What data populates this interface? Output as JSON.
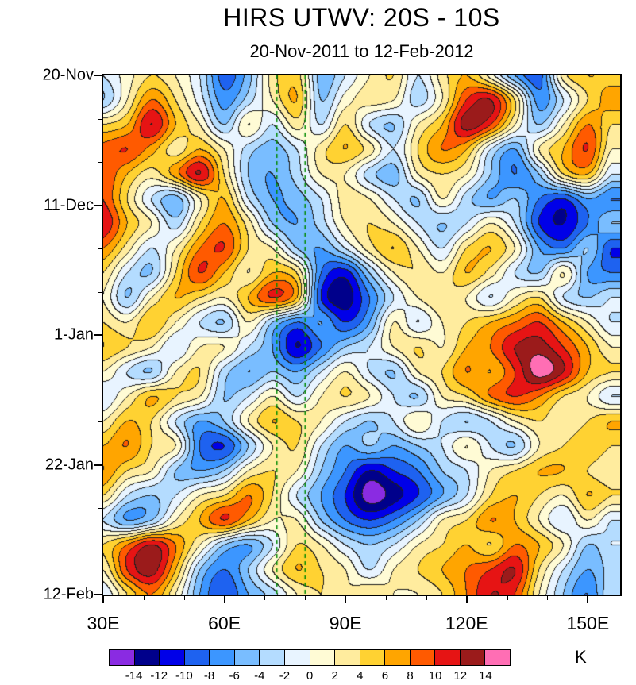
{
  "chart_data": {
    "type": "heatmap",
    "title": "HIRS UTWV: 20S - 10S",
    "subtitle": "20-Nov-2011 to 12-Feb-2012",
    "x_axis": {
      "range_lon_deg_east": [
        30,
        158
      ],
      "ticks": [
        {
          "lon": 30,
          "label": "30E"
        },
        {
          "lon": 60,
          "label": "60E"
        },
        {
          "lon": 90,
          "label": "90E"
        },
        {
          "lon": 120,
          "label": "120E"
        },
        {
          "lon": 150,
          "label": "150E"
        }
      ],
      "minor_tick_lons": [
        40,
        50,
        70,
        80,
        100,
        110,
        130,
        140
      ]
    },
    "y_axis": {
      "range_days": [
        0,
        84
      ],
      "ticks": [
        {
          "day": 0,
          "label": "20-Nov"
        },
        {
          "day": 21,
          "label": "11-Dec"
        },
        {
          "day": 42,
          "label": "1-Jan"
        },
        {
          "day": 63,
          "label": "22-Jan"
        },
        {
          "day": 84,
          "label": "12-Feb"
        }
      ],
      "minor_tick_days": [
        7,
        14,
        28,
        35,
        49,
        56,
        70,
        77
      ]
    },
    "grid_lons": [
      30,
      36,
      42,
      48,
      54,
      60,
      66,
      72,
      78,
      84,
      90,
      96,
      102,
      108,
      114,
      120,
      126,
      132,
      138,
      144,
      150,
      156
    ],
    "grid_days": [
      0,
      4,
      8,
      12,
      16,
      20,
      24,
      28,
      32,
      36,
      40,
      44,
      48,
      52,
      56,
      60,
      64,
      68,
      72,
      76,
      80,
      84
    ],
    "values_K": [
      [
        -2,
        1,
        4,
        2,
        -2,
        -9,
        -5,
        3,
        5,
        -5,
        -2,
        2,
        4,
        -2,
        3,
        6,
        1,
        -6,
        -9,
        3,
        6,
        5
      ],
      [
        -4,
        2,
        8,
        4,
        -1,
        -7,
        -3,
        2,
        6,
        -4,
        1,
        3,
        2,
        -3,
        2,
        10,
        12,
        4,
        -7,
        -2,
        4,
        7
      ],
      [
        4,
        6,
        12,
        6,
        2,
        -4,
        2,
        -2,
        3,
        -2,
        4,
        -2,
        -4,
        2,
        6,
        13,
        10,
        2,
        -4,
        2,
        8,
        4
      ],
      [
        9,
        10,
        7,
        3,
        6,
        2,
        -3,
        -5,
        -2,
        3,
        6,
        3,
        -2,
        4,
        8,
        6,
        -2,
        -6,
        2,
        6,
        10,
        2
      ],
      [
        10,
        6,
        3,
        7,
        12,
        4,
        -4,
        -6,
        -3,
        2,
        2,
        -3,
        -5,
        2,
        4,
        2,
        -4,
        -8,
        -4,
        4,
        6,
        -2
      ],
      [
        10,
        4,
        -2,
        -5,
        2,
        6,
        -2,
        -6,
        -5,
        -2,
        3,
        2,
        -2,
        -4,
        2,
        -3,
        -6,
        -4,
        -8,
        -10,
        -6,
        -8
      ],
      [
        12,
        6,
        2,
        -3,
        4,
        8,
        3,
        -4,
        -6,
        -3,
        2,
        4,
        2,
        -2,
        -4,
        -2,
        2,
        -2,
        -10,
        -12,
        -8,
        -4
      ],
      [
        8,
        3,
        -2,
        2,
        8,
        10,
        4,
        2,
        -4,
        -6,
        -2,
        3,
        6,
        2,
        -2,
        4,
        6,
        2,
        -6,
        -8,
        -4,
        -10
      ],
      [
        4,
        -2,
        -4,
        4,
        10,
        6,
        2,
        6,
        4,
        -8,
        -11,
        -4,
        2,
        4,
        2,
        6,
        3,
        -2,
        -4,
        2,
        -6,
        -8
      ],
      [
        2,
        -4,
        2,
        6,
        4,
        2,
        6,
        10,
        6,
        -10,
        -13,
        -8,
        -2,
        2,
        4,
        2,
        -2,
        2,
        4,
        -2,
        -4,
        -2
      ],
      [
        4,
        2,
        6,
        2,
        -2,
        -4,
        2,
        -4,
        -8,
        -6,
        -10,
        -6,
        2,
        -2,
        2,
        4,
        6,
        8,
        10,
        6,
        2,
        -2
      ],
      [
        6,
        4,
        2,
        -2,
        2,
        2,
        -2,
        -6,
        -12,
        -8,
        -4,
        -2,
        2,
        4,
        2,
        6,
        8,
        12,
        13,
        10,
        6,
        2
      ],
      [
        2,
        -2,
        -4,
        2,
        4,
        -3,
        -6,
        -4,
        -6,
        -2,
        2,
        -2,
        -4,
        2,
        4,
        8,
        6,
        10,
        15,
        12,
        6,
        4
      ],
      [
        -2,
        2,
        6,
        4,
        2,
        -4,
        -2,
        2,
        -2,
        2,
        4,
        2,
        -2,
        -4,
        2,
        4,
        8,
        10,
        8,
        4,
        2,
        -2
      ],
      [
        2,
        6,
        4,
        -2,
        -6,
        -4,
        2,
        6,
        4,
        2,
        -2,
        -4,
        -2,
        2,
        -2,
        -4,
        -2,
        2,
        4,
        2,
        4,
        6
      ],
      [
        6,
        8,
        4,
        2,
        -8,
        -10,
        -4,
        2,
        4,
        -2,
        -6,
        -4,
        -6,
        -4,
        -2,
        2,
        -2,
        -4,
        2,
        4,
        6,
        4
      ],
      [
        8,
        4,
        2,
        -4,
        -6,
        -4,
        2,
        4,
        2,
        -4,
        -8,
        -12,
        -10,
        -8,
        -4,
        -2,
        2,
        4,
        6,
        6,
        4,
        2
      ],
      [
        4,
        -2,
        -4,
        -2,
        2,
        4,
        8,
        4,
        -2,
        -6,
        -10,
        -15,
        -13,
        -10,
        -6,
        -2,
        4,
        6,
        4,
        2,
        6,
        4
      ],
      [
        -2,
        -6,
        -4,
        2,
        6,
        10,
        6,
        2,
        2,
        -4,
        -8,
        -10,
        -8,
        -4,
        2,
        4,
        8,
        6,
        2,
        -2,
        2,
        -2
      ],
      [
        4,
        8,
        12,
        8,
        2,
        -4,
        -6,
        -2,
        4,
        2,
        -2,
        -4,
        -2,
        2,
        4,
        6,
        4,
        8,
        6,
        2,
        -4,
        -2
      ],
      [
        2,
        10,
        13,
        6,
        -4,
        -8,
        -4,
        2,
        6,
        4,
        2,
        -2,
        2,
        4,
        6,
        8,
        10,
        12,
        4,
        -2,
        -6,
        -3
      ],
      [
        -2,
        4,
        8,
        2,
        -6,
        -10,
        -6,
        -3,
        2,
        4,
        2,
        4,
        2,
        2,
        4,
        8,
        12,
        10,
        2,
        -4,
        -8,
        -2
      ]
    ],
    "levels": [
      -14,
      -12,
      -10,
      -8,
      -6,
      -4,
      -2,
      0,
      2,
      4,
      6,
      8,
      10,
      12,
      14
    ],
    "colors": [
      "#8A2BE2",
      "#00008B",
      "#0000E8",
      "#1E62F0",
      "#3C96FF",
      "#79BDFF",
      "#B4DCFF",
      "#E8F4FF",
      "#FFFBD5",
      "#FFEC9E",
      "#FFD232",
      "#FFA500",
      "#FF5A00",
      "#E61414",
      "#9B1B1B",
      "#FF6EB4"
    ],
    "contour_line_color": "#1F1F1F",
    "reference_lines": {
      "lons": [
        73,
        80
      ],
      "color": "#008A00",
      "style": "dashed"
    },
    "colorbar": {
      "tick_labels": [
        "-14",
        "-12",
        "-10",
        "-8",
        "-6",
        "-4",
        "-2",
        "0",
        "2",
        "4",
        "6",
        "8",
        "10",
        "12",
        "14"
      ],
      "unit": "K"
    }
  }
}
